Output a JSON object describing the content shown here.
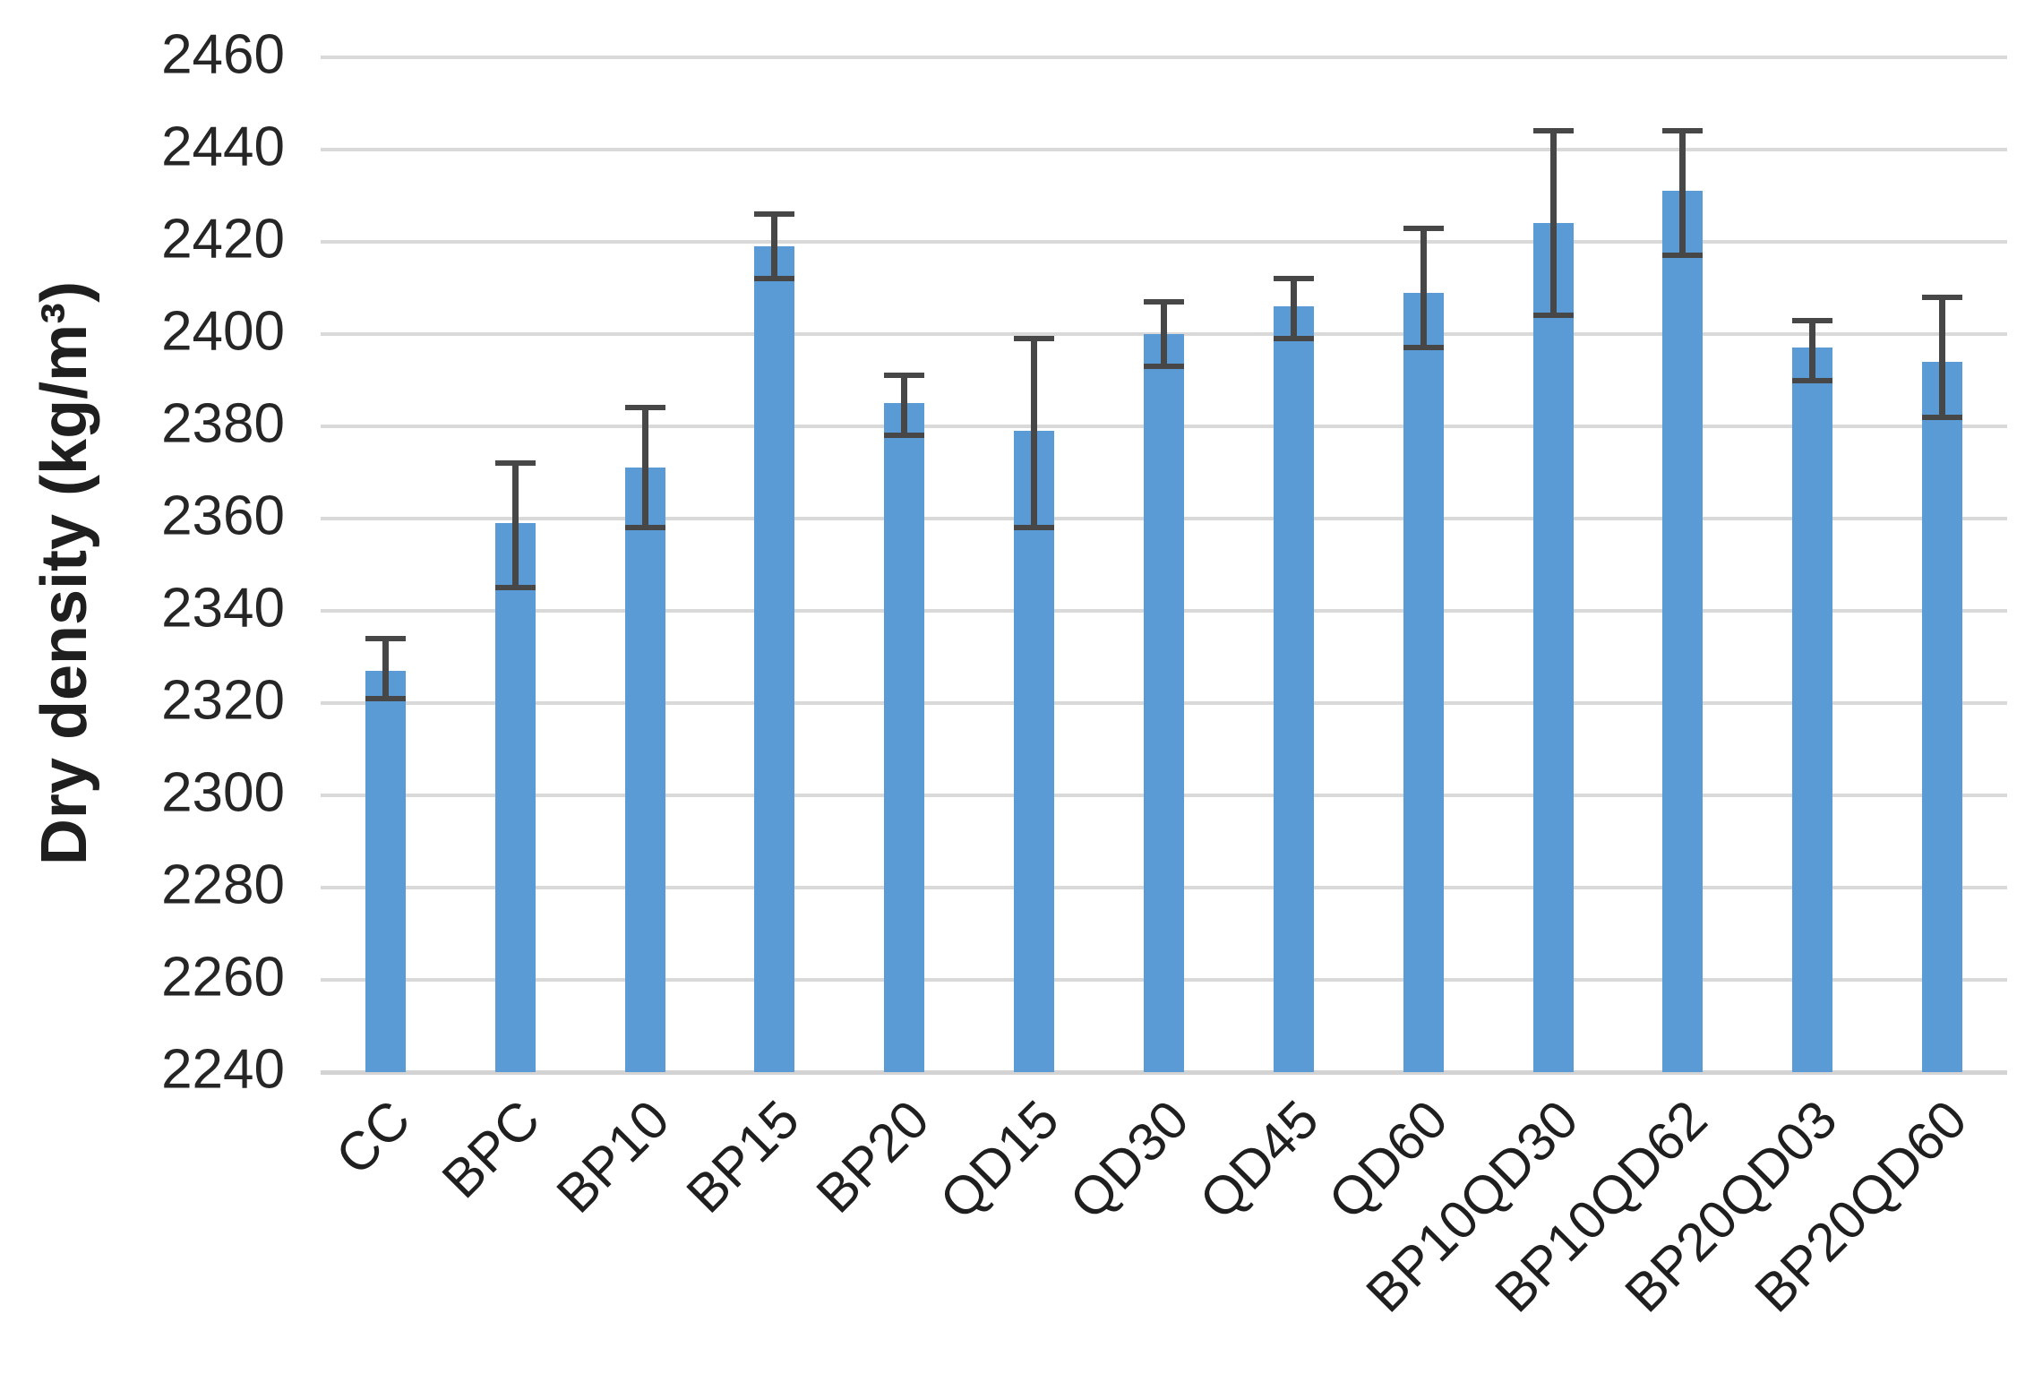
{
  "chart_data": {
    "type": "bar",
    "title": "",
    "xlabel": "",
    "ylabel": "Dry density (kg/m³)",
    "categories": [
      "CC",
      "BPC",
      "BP10",
      "BP15",
      "BP20",
      "QD15",
      "QD30",
      "QD45",
      "QD60",
      "BP10QD30",
      "BP10QD62",
      "BP20QD03",
      "BP20QD60"
    ],
    "series": [
      {
        "name": "Dry density (kg/m3)",
        "values": [
          2327,
          2359,
          2371,
          2419,
          2385,
          2379,
          2400,
          2406,
          2409,
          2424,
          2431,
          2397,
          2394
        ],
        "error_up": [
          7,
          13,
          13,
          7,
          6,
          20,
          7,
          6,
          14,
          20,
          13,
          6,
          14
        ],
        "error_down": [
          6,
          14,
          13,
          7,
          7,
          21,
          7,
          7,
          12,
          20,
          14,
          7,
          12
        ]
      }
    ],
    "ylim": [
      2240,
      2460
    ],
    "ytick_step": 20,
    "yticks": [
      2240,
      2260,
      2280,
      2300,
      2320,
      2340,
      2360,
      2380,
      2400,
      2420,
      2440,
      2460
    ],
    "grid": "horizontal gridlines on, no vertical gridlines, no legend, no chart title",
    "legend_position": "none",
    "colors": {
      "bar_fill": "#5b9bd5",
      "error_bar": "#474747",
      "gridline": "#d9d9d9",
      "axis_line": "#d3d3d3",
      "tick_text": "#262626",
      "label_text": "#1f1f1f",
      "background": "#ffffff"
    }
  }
}
